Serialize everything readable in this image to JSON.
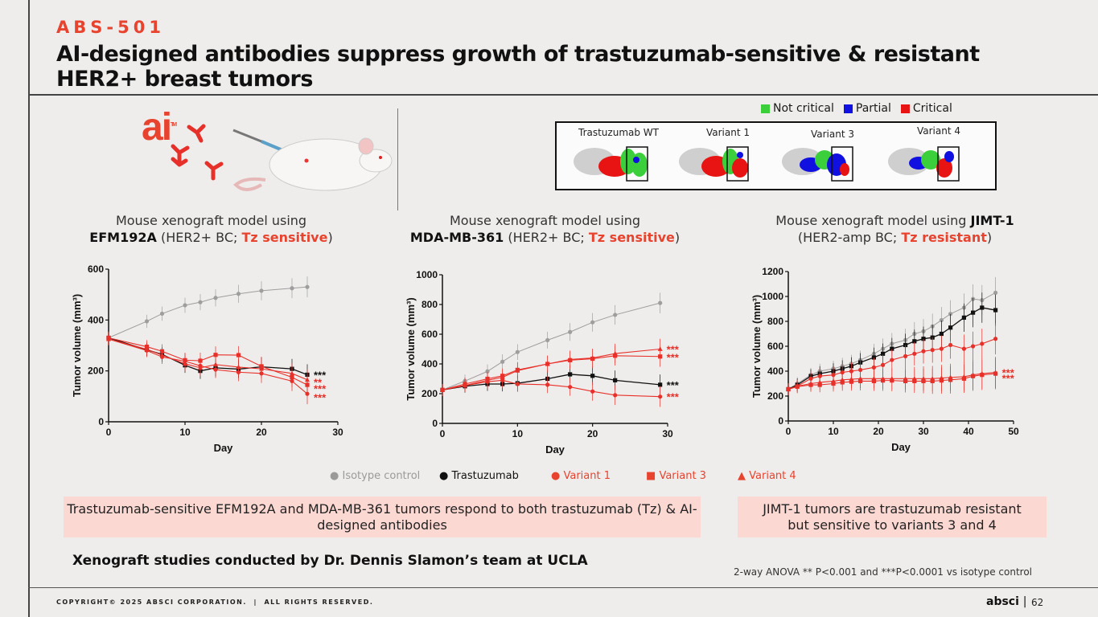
{
  "header": {
    "kicker": "ABS-501",
    "title": "AI-designed antibodies suppress growth of trastuzumab-sensitive & resistant HER2+ breast tumors"
  },
  "logo": {
    "text": "ai",
    "tm": "TM"
  },
  "epitope_legend": [
    {
      "label": "Not critical",
      "color": "#3ccf3c"
    },
    {
      "label": "Partial",
      "color": "#1010e0"
    },
    {
      "label": "Critical",
      "color": "#e81414"
    }
  ],
  "structures": [
    "Trastuzumab WT",
    "Variant 1",
    "Variant 3",
    "Variant 4"
  ],
  "panel_titles": [
    {
      "line1": "Mouse xenograft model using",
      "cell": "EFM192A",
      "mid": " (HER2+ BC; ",
      "tz": "Tz sensitive",
      "end": ")"
    },
    {
      "line1": "Mouse xenograft model using",
      "cell": "MDA-MB-361",
      "mid": " (HER2+ BC; ",
      "tz": "Tz sensitive",
      "end": ")"
    },
    {
      "line1": "Mouse xenograft model using ",
      "cell": "JIMT-1",
      "mid": "(HER2-amp BC; ",
      "tz": "Tz resistant",
      "end": ")"
    }
  ],
  "series_legend": [
    {
      "marker": "●",
      "label": "Isotype control",
      "color": "#9a9a9a"
    },
    {
      "marker": "●",
      "label": "Trastuzumab",
      "color": "#111111"
    },
    {
      "marker": "●",
      "label": "Variant 1",
      "color": "#e8432f"
    },
    {
      "marker": "■",
      "label": "Variant 3",
      "color": "#e8432f"
    },
    {
      "marker": "▲",
      "label": "Variant 4",
      "color": "#e8432f"
    }
  ],
  "colors": {
    "isotype": "#9e9e9e",
    "trastuzumab": "#111111",
    "variant": "#e8302a",
    "accent": "#e8432f"
  },
  "chart_data": [
    {
      "type": "line",
      "xlabel": "Day",
      "ylabel": "Tumor volume (mm³)",
      "xlim": [
        0,
        30
      ],
      "ylim": [
        0,
        600
      ],
      "xticks": [
        0,
        10,
        20,
        30
      ],
      "yticks": [
        0,
        200,
        400,
        600
      ],
      "series": [
        {
          "name": "Isotype control",
          "x": [
            0,
            5,
            7,
            10,
            12,
            14,
            17,
            20,
            24,
            26
          ],
          "values": [
            330,
            395,
            425,
            458,
            470,
            487,
            503,
            515,
            525,
            530
          ]
        },
        {
          "name": "Trastuzumab",
          "x": [
            0,
            5,
            7,
            10,
            12,
            14,
            17,
            20,
            24,
            26
          ],
          "values": [
            330,
            283,
            265,
            222,
            200,
            212,
            207,
            216,
            208,
            185
          ]
        },
        {
          "name": "Variant 1",
          "x": [
            0,
            5,
            7,
            10,
            12,
            14,
            17,
            20,
            24,
            26
          ],
          "values": [
            325,
            280,
            255,
            238,
            220,
            205,
            195,
            190,
            160,
            110
          ]
        },
        {
          "name": "Variant 3",
          "x": [
            0,
            5,
            7,
            10,
            12,
            14,
            17,
            20,
            24,
            26
          ],
          "values": [
            330,
            295,
            277,
            242,
            240,
            263,
            262,
            218,
            175,
            145
          ]
        },
        {
          "name": "Variant 4",
          "x": [
            0,
            5,
            7,
            10,
            12,
            14,
            17,
            20,
            24,
            26
          ],
          "values": [
            325,
            285,
            262,
            228,
            212,
            225,
            215,
            208,
            190,
            165
          ]
        }
      ],
      "annotations": [
        {
          "text": "***",
          "y": 185,
          "color": "#111111"
        },
        {
          "text": "**",
          "y": 157,
          "color": "#e8302a"
        },
        {
          "text": "***",
          "y": 131,
          "color": "#e8302a"
        },
        {
          "text": "***",
          "y": 96,
          "color": "#e8302a"
        }
      ]
    },
    {
      "type": "line",
      "xlabel": "Day",
      "ylabel": "Tumor volume (mm³)",
      "xlim": [
        0,
        30
      ],
      "ylim": [
        0,
        1000
      ],
      "xticks": [
        0,
        10,
        20,
        30
      ],
      "yticks": [
        0,
        200,
        400,
        600,
        800,
        1000
      ],
      "series": [
        {
          "name": "Isotype control",
          "x": [
            0,
            3,
            6,
            8,
            10,
            14,
            17,
            20,
            23,
            29
          ],
          "values": [
            225,
            285,
            350,
            415,
            480,
            560,
            615,
            680,
            730,
            810
          ]
        },
        {
          "name": "Trastuzumab",
          "x": [
            0,
            3,
            6,
            8,
            10,
            14,
            17,
            20,
            23,
            29
          ],
          "values": [
            225,
            250,
            265,
            265,
            270,
            300,
            330,
            320,
            290,
            260
          ]
        },
        {
          "name": "Variant 1",
          "x": [
            0,
            3,
            6,
            8,
            10,
            14,
            17,
            20,
            23,
            29
          ],
          "values": [
            225,
            255,
            280,
            290,
            265,
            260,
            245,
            215,
            190,
            180
          ]
        },
        {
          "name": "Variant 3",
          "x": [
            0,
            3,
            6,
            8,
            10,
            14,
            17,
            20,
            23,
            29
          ],
          "values": [
            225,
            265,
            300,
            320,
            360,
            400,
            425,
            435,
            455,
            450
          ]
        },
        {
          "name": "Variant 4",
          "x": [
            0,
            3,
            6,
            8,
            10,
            14,
            17,
            20,
            23,
            29
          ],
          "values": [
            225,
            255,
            290,
            310,
            355,
            400,
            430,
            440,
            470,
            500
          ]
        }
      ],
      "annotations": [
        {
          "text": "***",
          "y": 500,
          "color": "#e8302a"
        },
        {
          "text": "***",
          "y": 445,
          "color": "#e8302a"
        },
        {
          "text": "***",
          "y": 260,
          "color": "#111111"
        },
        {
          "text": "***",
          "y": 180,
          "color": "#e8302a"
        }
      ]
    },
    {
      "type": "line",
      "xlabel": "Day",
      "ylabel": "Tumor volume (mm³)",
      "xlim": [
        0,
        50
      ],
      "ylim": [
        0,
        1200
      ],
      "xticks": [
        0,
        10,
        20,
        30,
        40,
        50
      ],
      "yticks": [
        0,
        200,
        400,
        600,
        800,
        1000,
        1200
      ],
      "series": [
        {
          "name": "Isotype control",
          "x": [
            0,
            2,
            5,
            7,
            10,
            12,
            14,
            16,
            19,
            21,
            23,
            26,
            28,
            30,
            32,
            34,
            36,
            39,
            41,
            43,
            46
          ],
          "values": [
            255,
            300,
            370,
            400,
            420,
            440,
            460,
            490,
            540,
            580,
            620,
            650,
            700,
            720,
            760,
            810,
            860,
            910,
            980,
            970,
            1030
          ]
        },
        {
          "name": "Trastuzumab",
          "x": [
            0,
            2,
            5,
            7,
            10,
            12,
            14,
            16,
            19,
            21,
            23,
            26,
            28,
            30,
            32,
            34,
            36,
            39,
            41,
            43,
            46
          ],
          "values": [
            255,
            290,
            360,
            380,
            400,
            420,
            440,
            470,
            510,
            540,
            580,
            610,
            640,
            660,
            670,
            700,
            750,
            830,
            870,
            910,
            890
          ]
        },
        {
          "name": "Variant 1",
          "x": [
            0,
            2,
            5,
            7,
            10,
            12,
            14,
            16,
            19,
            21,
            23,
            26,
            28,
            30,
            32,
            34,
            36,
            39,
            41,
            43,
            46
          ],
          "values": [
            255,
            280,
            340,
            360,
            370,
            390,
            400,
            410,
            430,
            450,
            490,
            520,
            540,
            560,
            570,
            580,
            610,
            580,
            600,
            620,
            660
          ]
        },
        {
          "name": "Variant 3",
          "x": [
            0,
            2,
            5,
            7,
            10,
            12,
            14,
            16,
            19,
            21,
            23,
            26,
            28,
            30,
            32,
            34,
            36,
            39,
            41,
            43,
            46
          ],
          "values": [
            255,
            275,
            290,
            290,
            300,
            310,
            315,
            320,
            320,
            325,
            325,
            320,
            320,
            320,
            320,
            325,
            330,
            340,
            360,
            370,
            380
          ]
        },
        {
          "name": "Variant 4",
          "x": [
            0,
            2,
            5,
            7,
            10,
            12,
            14,
            16,
            19,
            21,
            23,
            26,
            28,
            30,
            32,
            34,
            36,
            39,
            41,
            43,
            46
          ],
          "values": [
            255,
            280,
            300,
            310,
            320,
            330,
            335,
            340,
            340,
            340,
            340,
            340,
            340,
            340,
            340,
            345,
            350,
            355,
            370,
            380,
            390
          ]
        }
      ],
      "annotations": [
        {
          "text": "***",
          "y": 390,
          "color": "#e8302a"
        },
        {
          "text": "***",
          "y": 345,
          "color": "#e8302a"
        }
      ]
    }
  ],
  "callouts": {
    "left": "Trastuzumab-sensitive EFM192A and MDA-MB-361 tumors respond to both trastuzumab (Tz) & AI-designed antibodies",
    "right": "JIMT-1 tumors are trastuzumab resistant but sensitive to variants 3 and 4"
  },
  "credit": "Xenograft studies conducted by Dr. Dennis Slamon’s team at UCLA",
  "stats_note": "2-way ANOVA ** P<0.001 and ***P<0.0001 vs isotype control",
  "footer": {
    "copyright": "COPYRIGHT© 2025 ABSCI CORPORATION.",
    "rights": "ALL RIGHTS RESERVED.",
    "brand": "absci",
    "page": "62"
  }
}
